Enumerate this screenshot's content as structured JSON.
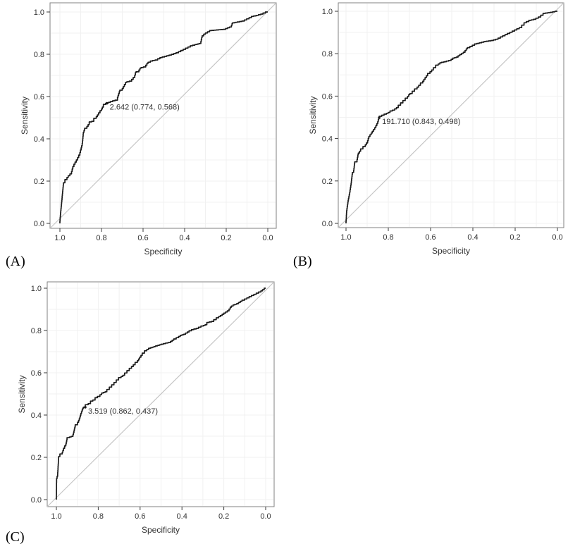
{
  "figure": {
    "background": "#ffffff",
    "curve_color": "#1a1a1a",
    "diagonal_color": "#c6c6c6",
    "grid_color": "#f1f1f1",
    "box_color": "#828282",
    "tick_color": "#3a3a3a",
    "text_color": "#333333"
  },
  "chart_data": [
    {
      "type": "line",
      "subtype": "roc-curve",
      "panel_label": "(A)",
      "xlabel": "Specificity",
      "ylabel": "Sensitivity",
      "xlim": [
        1.0,
        0.0
      ],
      "ylim": [
        0.0,
        1.0
      ],
      "grid": true,
      "legend": "none",
      "x_ticks": [
        "1.0",
        "0.8",
        "0.6",
        "0.4",
        "0.2",
        "0.0"
      ],
      "y_ticks": [
        "0.0",
        "0.2",
        "0.4",
        "0.6",
        "0.8",
        "1.0"
      ],
      "x_tick_values": [
        1.0,
        0.8,
        0.6,
        0.4,
        0.2,
        0.0
      ],
      "y_tick_values": [
        0.0,
        0.2,
        0.4,
        0.6,
        0.8,
        1.0
      ],
      "cutoff": {
        "label": "2.642 (0.774, 0.568)",
        "threshold": 2.642,
        "specificity": 0.774,
        "sensitivity": 0.568
      },
      "roc_points": [
        [
          1.0,
          0.0
        ],
        [
          0.997,
          0.04
        ],
        [
          0.993,
          0.08
        ],
        [
          0.989,
          0.12
        ],
        [
          0.983,
          0.18
        ],
        [
          0.976,
          0.192
        ],
        [
          0.966,
          0.207
        ],
        [
          0.96,
          0.217
        ],
        [
          0.944,
          0.234
        ],
        [
          0.938,
          0.257
        ],
        [
          0.927,
          0.28
        ],
        [
          0.915,
          0.3
        ],
        [
          0.904,
          0.323
        ],
        [
          0.898,
          0.347
        ],
        [
          0.893,
          0.367
        ],
        [
          0.89,
          0.39
        ],
        [
          0.887,
          0.423
        ],
        [
          0.881,
          0.44
        ],
        [
          0.87,
          0.45
        ],
        [
          0.859,
          0.467
        ],
        [
          0.847,
          0.48
        ],
        [
          0.837,
          0.483
        ],
        [
          0.825,
          0.497
        ],
        [
          0.814,
          0.513
        ],
        [
          0.8,
          0.533
        ],
        [
          0.791,
          0.55
        ],
        [
          0.78,
          0.563
        ],
        [
          0.774,
          0.568
        ],
        [
          0.757,
          0.573
        ],
        [
          0.735,
          0.58
        ],
        [
          0.723,
          0.583
        ],
        [
          0.72,
          0.597
        ],
        [
          0.712,
          0.623
        ],
        [
          0.7,
          0.63
        ],
        [
          0.69,
          0.647
        ],
        [
          0.678,
          0.667
        ],
        [
          0.655,
          0.673
        ],
        [
          0.64,
          0.69
        ],
        [
          0.634,
          0.713
        ],
        [
          0.62,
          0.717
        ],
        [
          0.61,
          0.734
        ],
        [
          0.587,
          0.74
        ],
        [
          0.576,
          0.757
        ],
        [
          0.554,
          0.768
        ],
        [
          0.53,
          0.773
        ],
        [
          0.508,
          0.784
        ],
        [
          0.486,
          0.79
        ],
        [
          0.464,
          0.796
        ],
        [
          0.43,
          0.807
        ],
        [
          0.407,
          0.818
        ],
        [
          0.384,
          0.829
        ],
        [
          0.362,
          0.84
        ],
        [
          0.34,
          0.846
        ],
        [
          0.322,
          0.851
        ],
        [
          0.316,
          0.879
        ],
        [
          0.3,
          0.895
        ],
        [
          0.27,
          0.912
        ],
        [
          0.237,
          0.915
        ],
        [
          0.203,
          0.918
        ],
        [
          0.175,
          0.929
        ],
        [
          0.169,
          0.946
        ],
        [
          0.147,
          0.951
        ],
        [
          0.113,
          0.957
        ],
        [
          0.079,
          0.973
        ],
        [
          0.068,
          0.979
        ],
        [
          0.045,
          0.984
        ],
        [
          0.023,
          0.99
        ],
        [
          0.0,
          1.0
        ]
      ]
    },
    {
      "type": "line",
      "subtype": "roc-curve",
      "panel_label": "(B)",
      "xlabel": "Specificity",
      "ylabel": "Sensitivity",
      "xlim": [
        1.0,
        0.0
      ],
      "ylim": [
        0.0,
        1.0
      ],
      "grid": true,
      "legend": "none",
      "x_ticks": [
        "1.0",
        "0.8",
        "0.6",
        "0.4",
        "0.2",
        "0.0"
      ],
      "y_ticks": [
        "0.0",
        "0.2",
        "0.4",
        "0.6",
        "0.8",
        "1.0"
      ],
      "x_tick_values": [
        1.0,
        0.8,
        0.6,
        0.4,
        0.2,
        0.0
      ],
      "y_tick_values": [
        0.0,
        0.2,
        0.4,
        0.6,
        0.8,
        1.0
      ],
      "cutoff": {
        "label": "191.710 (0.843, 0.498)",
        "threshold": 191.71,
        "specificity": 0.843,
        "sensitivity": 0.498
      },
      "roc_points": [
        [
          1.0,
          0.0
        ],
        [
          0.997,
          0.05
        ],
        [
          0.99,
          0.1
        ],
        [
          0.981,
          0.147
        ],
        [
          0.976,
          0.18
        ],
        [
          0.97,
          0.23
        ],
        [
          0.964,
          0.24
        ],
        [
          0.959,
          0.28
        ],
        [
          0.948,
          0.29
        ],
        [
          0.942,
          0.323
        ],
        [
          0.931,
          0.34
        ],
        [
          0.92,
          0.351
        ],
        [
          0.909,
          0.362
        ],
        [
          0.898,
          0.379
        ],
        [
          0.892,
          0.401
        ],
        [
          0.881,
          0.418
        ],
        [
          0.87,
          0.434
        ],
        [
          0.859,
          0.451
        ],
        [
          0.85,
          0.47
        ],
        [
          0.843,
          0.498
        ],
        [
          0.831,
          0.505
        ],
        [
          0.82,
          0.51
        ],
        [
          0.809,
          0.515
        ],
        [
          0.792,
          0.523
        ],
        [
          0.781,
          0.53
        ],
        [
          0.77,
          0.534
        ],
        [
          0.753,
          0.546
        ],
        [
          0.742,
          0.557
        ],
        [
          0.731,
          0.568
        ],
        [
          0.72,
          0.579
        ],
        [
          0.709,
          0.59
        ],
        [
          0.698,
          0.607
        ],
        [
          0.687,
          0.612
        ],
        [
          0.676,
          0.623
        ],
        [
          0.664,
          0.634
        ],
        [
          0.648,
          0.651
        ],
        [
          0.637,
          0.662
        ],
        [
          0.626,
          0.679
        ],
        [
          0.614,
          0.696
        ],
        [
          0.603,
          0.707
        ],
        [
          0.587,
          0.723
        ],
        [
          0.576,
          0.734
        ],
        [
          0.564,
          0.746
        ],
        [
          0.548,
          0.757
        ],
        [
          0.526,
          0.762
        ],
        [
          0.503,
          0.768
        ],
        [
          0.487,
          0.779
        ],
        [
          0.47,
          0.784
        ],
        [
          0.453,
          0.796
        ],
        [
          0.437,
          0.807
        ],
        [
          0.426,
          0.823
        ],
        [
          0.403,
          0.834
        ],
        [
          0.381,
          0.846
        ],
        [
          0.359,
          0.851
        ],
        [
          0.337,
          0.857
        ],
        [
          0.303,
          0.862
        ],
        [
          0.281,
          0.868
        ],
        [
          0.259,
          0.879
        ],
        [
          0.237,
          0.89
        ],
        [
          0.214,
          0.901
        ],
        [
          0.192,
          0.912
        ],
        [
          0.169,
          0.923
        ],
        [
          0.147,
          0.946
        ],
        [
          0.124,
          0.957
        ],
        [
          0.102,
          0.962
        ],
        [
          0.079,
          0.973
        ],
        [
          0.057,
          0.99
        ],
        [
          0.023,
          0.995
        ],
        [
          0.0,
          1.0
        ]
      ]
    },
    {
      "type": "line",
      "subtype": "roc-curve",
      "panel_label": "(C)",
      "xlabel": "Specificity",
      "ylabel": "Sensitivity",
      "xlim": [
        1.0,
        0.0
      ],
      "ylim": [
        0.0,
        1.0
      ],
      "grid": true,
      "legend": "none",
      "x_ticks": [
        "1.0",
        "0.8",
        "0.6",
        "0.4",
        "0.2",
        "0.0"
      ],
      "y_ticks": [
        "0.0",
        "0.2",
        "0.4",
        "0.6",
        "0.8",
        "1.0"
      ],
      "x_tick_values": [
        1.0,
        0.8,
        0.6,
        0.4,
        0.2,
        0.0
      ],
      "y_tick_values": [
        0.0,
        0.2,
        0.4,
        0.6,
        0.8,
        1.0
      ],
      "cutoff": {
        "label": "3.519 (0.862, 0.437)",
        "threshold": 3.519,
        "specificity": 0.862,
        "sensitivity": 0.437
      },
      "roc_points": [
        [
          1.0,
          0.0
        ],
        [
          0.999,
          0.09
        ],
        [
          0.994,
          0.11
        ],
        [
          0.989,
          0.199
        ],
        [
          0.983,
          0.204
        ],
        [
          0.972,
          0.216
        ],
        [
          0.966,
          0.232
        ],
        [
          0.955,
          0.254
        ],
        [
          0.949,
          0.282
        ],
        [
          0.938,
          0.293
        ],
        [
          0.921,
          0.299
        ],
        [
          0.916,
          0.316
        ],
        [
          0.91,
          0.343
        ],
        [
          0.899,
          0.354
        ],
        [
          0.894,
          0.366
        ],
        [
          0.888,
          0.382
        ],
        [
          0.883,
          0.399
        ],
        [
          0.877,
          0.416
        ],
        [
          0.871,
          0.432
        ],
        [
          0.862,
          0.437
        ],
        [
          0.848,
          0.449
        ],
        [
          0.837,
          0.454
        ],
        [
          0.826,
          0.466
        ],
        [
          0.815,
          0.471
        ],
        [
          0.804,
          0.482
        ],
        [
          0.792,
          0.488
        ],
        [
          0.776,
          0.504
        ],
        [
          0.759,
          0.51
        ],
        [
          0.747,
          0.521
        ],
        [
          0.736,
          0.532
        ],
        [
          0.725,
          0.543
        ],
        [
          0.714,
          0.554
        ],
        [
          0.703,
          0.566
        ],
        [
          0.691,
          0.577
        ],
        [
          0.674,
          0.588
        ],
        [
          0.663,
          0.599
        ],
        [
          0.652,
          0.61
        ],
        [
          0.641,
          0.621
        ],
        [
          0.624,
          0.638
        ],
        [
          0.613,
          0.649
        ],
        [
          0.602,
          0.665
        ],
        [
          0.59,
          0.682
        ],
        [
          0.579,
          0.693
        ],
        [
          0.568,
          0.704
        ],
        [
          0.551,
          0.716
        ],
        [
          0.534,
          0.721
        ],
        [
          0.517,
          0.727
        ],
        [
          0.5,
          0.732
        ],
        [
          0.478,
          0.738
        ],
        [
          0.455,
          0.743
        ],
        [
          0.439,
          0.754
        ],
        [
          0.416,
          0.766
        ],
        [
          0.4,
          0.777
        ],
        [
          0.383,
          0.782
        ],
        [
          0.366,
          0.793
        ],
        [
          0.343,
          0.804
        ],
        [
          0.321,
          0.81
        ],
        [
          0.298,
          0.821
        ],
        [
          0.281,
          0.827
        ],
        [
          0.27,
          0.838
        ],
        [
          0.248,
          0.843
        ],
        [
          0.225,
          0.86
        ],
        [
          0.208,
          0.871
        ],
        [
          0.192,
          0.882
        ],
        [
          0.175,
          0.893
        ],
        [
          0.164,
          0.91
        ],
        [
          0.147,
          0.921
        ],
        [
          0.13,
          0.927
        ],
        [
          0.113,
          0.938
        ],
        [
          0.09,
          0.949
        ],
        [
          0.068,
          0.96
        ],
        [
          0.045,
          0.971
        ],
        [
          0.023,
          0.982
        ],
        [
          0.007,
          0.993
        ],
        [
          0.0,
          1.0
        ]
      ]
    }
  ]
}
